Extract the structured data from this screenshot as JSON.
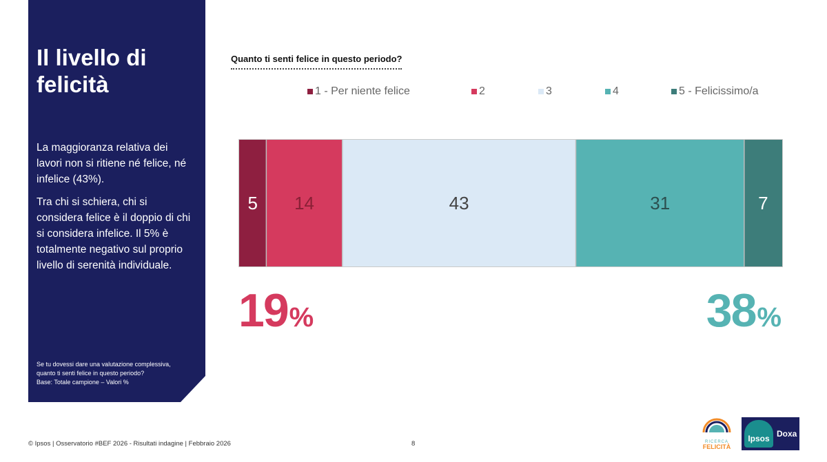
{
  "panel": {
    "title": "Il livello di felicità",
    "paragraphs": [
      "La maggioranza relativa dei lavori non si ritiene né felice, né infelice (43%).",
      "Tra chi si schiera, chi si considera felice è il doppio di chi si considera infelice. Il 5% è totalmente negativo sul proprio livello di serenità individuale."
    ],
    "note_lines": [
      "Se tu dovessi dare una valutazione complessiva,",
      "quanto ti senti felice in questo periodo?",
      "Base: Totale campione – Valori %"
    ]
  },
  "colors": {
    "panel_bg": "#1b1f5e",
    "negative_accent": "#d53a5e",
    "positive_accent": "#56b3b3"
  },
  "chart_data": {
    "type": "bar",
    "orientation": "horizontal-stacked-100",
    "title": "Quanto ti senti felice in questo periodo?",
    "legend_position": "top",
    "grid": false,
    "xlim": [
      0,
      100
    ],
    "series": [
      {
        "name": "1 - Per niente felice",
        "value": 5,
        "label": "5",
        "color": "#8e1f40",
        "label_color": "#ffffff"
      },
      {
        "name": "2",
        "value": 14,
        "label": "14",
        "color": "#d53a5e",
        "label_color": "#8a2036"
      },
      {
        "name": "3",
        "value": 43,
        "label": "43",
        "color": "#dbe9f6",
        "label_color": "#444444"
      },
      {
        "name": "4",
        "value": 31,
        "label": "31",
        "color": "#56b3b3",
        "label_color": "#2c4f4f"
      },
      {
        "name": "5 - Felicissimo/a",
        "value": 7,
        "label": "7",
        "color": "#3d7d7a",
        "label_color": "#ffffff"
      }
    ]
  },
  "summary": {
    "negative": {
      "value": "19",
      "unit": "%"
    },
    "positive": {
      "value": "38",
      "unit": "%"
    }
  },
  "footer": {
    "text": "© Ipsos | Osservatorio #BEF 2026 - Risultati indagine | Febbraio 2026",
    "page": "8"
  },
  "logos": {
    "ricerca_line1": "RICERCA",
    "ricerca_line2": "FELICITÀ",
    "ipsos": "Ipsos",
    "doxa": "Doxa"
  }
}
